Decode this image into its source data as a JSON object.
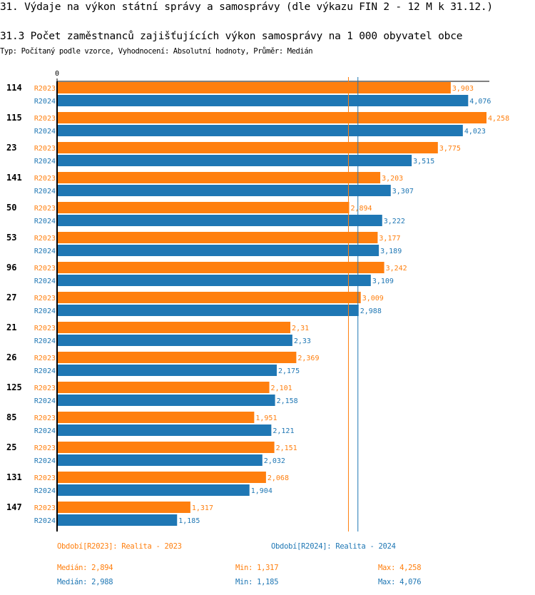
{
  "header": {
    "title": "31. Výdaje na výkon státní správy a samosprávy (dle výkazu FIN 2 - 12 M k 31.12.)",
    "subtitle": "31.3 Počet zaměstnanců zajišťujících výkon samosprávy na 1 000 obyvatel obce",
    "type_line": "Typ: Počítaný podle vzorce, Vyhodnocení: Absolutní hodnoty, Průměr: Medián"
  },
  "chart_data": {
    "type": "bar",
    "orientation": "horizontal",
    "xaxis_zero_label": "0",
    "xlim": [
      0,
      4.258
    ],
    "categories": [
      "114",
      "115",
      "23",
      "141",
      "50",
      "53",
      "96",
      "27",
      "21",
      "26",
      "125",
      "85",
      "25",
      "131",
      "147"
    ],
    "series": [
      {
        "name": "R2023",
        "color": "#ff7f0e",
        "values": [
          3.903,
          4.258,
          3.775,
          3.203,
          2.894,
          3.177,
          3.242,
          3.009,
          2.31,
          2.369,
          2.101,
          1.951,
          2.151,
          2.068,
          1.317
        ],
        "labels": [
          "3,903",
          "4,258",
          "3,775",
          "3,203",
          "2,894",
          "3,177",
          "3,242",
          "3,009",
          "2,31",
          "2,369",
          "2,101",
          "1,951",
          "2,151",
          "2,068",
          "1,317"
        ]
      },
      {
        "name": "R2024",
        "color": "#1f77b4",
        "values": [
          4.076,
          4.023,
          3.515,
          3.307,
          3.222,
          3.189,
          3.109,
          2.988,
          2.33,
          2.175,
          2.158,
          2.121,
          2.032,
          1.904,
          1.185
        ],
        "labels": [
          "4,076",
          "4,023",
          "3,515",
          "3,307",
          "3,222",
          "3,189",
          "3,109",
          "2,988",
          "2,33",
          "2,175",
          "2,158",
          "2,121",
          "2,032",
          "1,904",
          "1,185"
        ]
      }
    ],
    "median_lines": [
      {
        "series": "R2023",
        "value": 2.894
      },
      {
        "series": "R2024",
        "value": 2.988
      }
    ]
  },
  "legend": {
    "r2023": "Období[R2023]: Realita - 2023",
    "r2024": "Období[R2024]: Realita - 2024"
  },
  "stats": {
    "r2023": {
      "median": "Medián: 2,894",
      "min": "Min: 1,317",
      "max": "Max: 4,258"
    },
    "r2024": {
      "median": "Medián: 2,988",
      "min": "Min: 1,185",
      "max": "Max: 4,076"
    }
  }
}
